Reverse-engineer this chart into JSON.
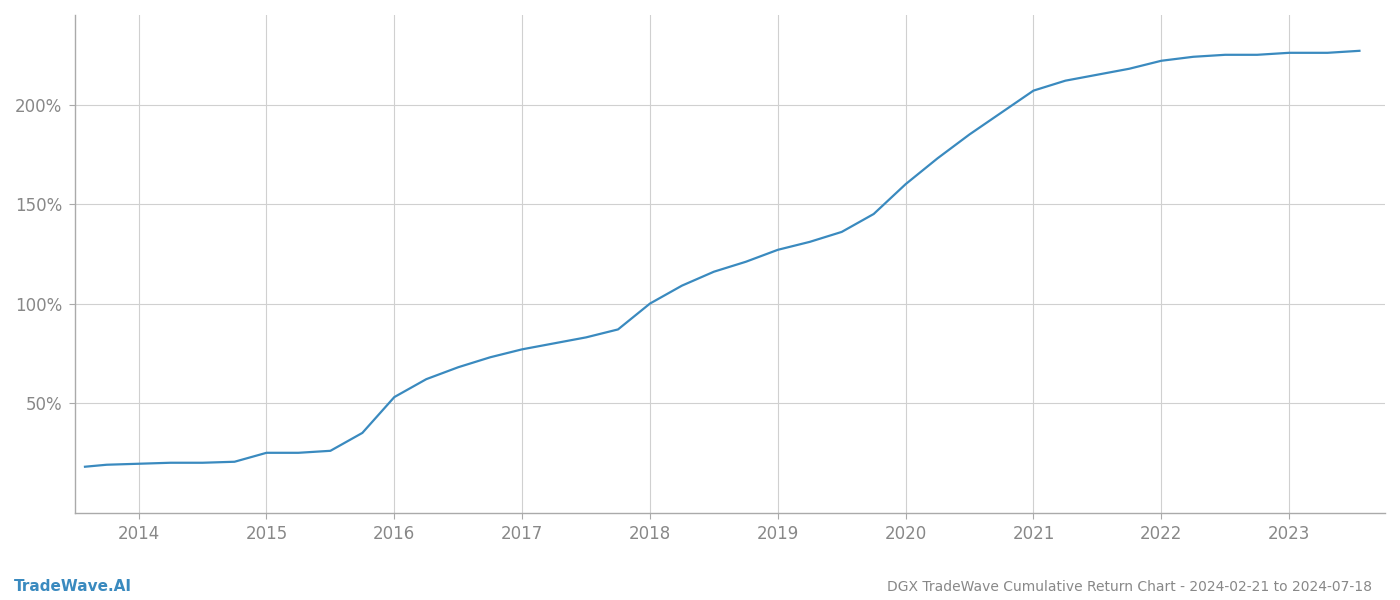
{
  "title": "DGX TradeWave Cumulative Return Chart - 2024-02-21 to 2024-07-18",
  "watermark": "TradeWave.AI",
  "line_color": "#3a8abf",
  "background_color": "#ffffff",
  "grid_color": "#d0d0d0",
  "x_years": [
    2014,
    2015,
    2016,
    2017,
    2018,
    2019,
    2020,
    2021,
    2022,
    2023
  ],
  "x_data": [
    2013.58,
    2013.75,
    2014.0,
    2014.25,
    2014.5,
    2014.75,
    2015.0,
    2015.25,
    2015.5,
    2015.75,
    2016.0,
    2016.25,
    2016.5,
    2016.75,
    2017.0,
    2017.25,
    2017.5,
    2017.75,
    2018.0,
    2018.25,
    2018.5,
    2018.75,
    2019.0,
    2019.25,
    2019.5,
    2019.75,
    2020.0,
    2020.25,
    2020.5,
    2020.75,
    2021.0,
    2021.25,
    2021.5,
    2021.75,
    2022.0,
    2022.25,
    2022.5,
    2022.75,
    2023.0,
    2023.3,
    2023.55
  ],
  "y_data": [
    18,
    19,
    19.5,
    20,
    20,
    20.5,
    25,
    25,
    26,
    35,
    53,
    62,
    68,
    73,
    77,
    80,
    83,
    87,
    100,
    109,
    116,
    121,
    127,
    131,
    136,
    145,
    160,
    173,
    185,
    196,
    207,
    212,
    215,
    218,
    222,
    224,
    225,
    225,
    226,
    226,
    227
  ],
  "yticks": [
    50,
    100,
    150,
    200
  ],
  "ytick_labels": [
    "50%",
    "100%",
    "150%",
    "200%"
  ],
  "ylim": [
    -5,
    245
  ],
  "xlim": [
    2013.5,
    2023.75
  ],
  "title_fontsize": 10,
  "watermark_fontsize": 11,
  "tick_fontsize": 12,
  "tick_color": "#888888",
  "spine_color": "#aaaaaa",
  "line_width": 1.6
}
